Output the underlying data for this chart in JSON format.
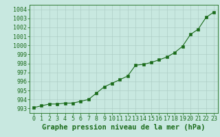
{
  "x": [
    0,
    1,
    2,
    3,
    4,
    5,
    6,
    7,
    8,
    9,
    10,
    11,
    12,
    13,
    14,
    15,
    16,
    17,
    18,
    19,
    20,
    21,
    22,
    23
  ],
  "y": [
    993.1,
    993.3,
    993.5,
    993.5,
    993.6,
    993.6,
    993.8,
    994.0,
    994.7,
    995.4,
    995.8,
    996.2,
    996.6,
    997.8,
    997.9,
    998.1,
    998.4,
    998.7,
    999.2,
    999.9,
    1001.2,
    1001.8,
    1003.1,
    1003.7
  ],
  "line_color": "#1a6b1a",
  "marker_color": "#1a6b1a",
  "bg_color": "#c8e8e0",
  "grid_color": "#a8c8c0",
  "xlabel": "Graphe pression niveau de la mer (hPa)",
  "ylim": [
    992.5,
    1004.5
  ],
  "yticks": [
    993,
    994,
    995,
    996,
    997,
    998,
    999,
    1000,
    1001,
    1002,
    1003,
    1004
  ],
  "xticks": [
    0,
    1,
    2,
    3,
    4,
    5,
    6,
    7,
    8,
    9,
    10,
    11,
    12,
    13,
    14,
    15,
    16,
    17,
    18,
    19,
    20,
    21,
    22,
    23
  ],
  "tick_label_color": "#1a6b1a",
  "xlabel_color": "#1a6b1a",
  "tick_fontsize": 6.0,
  "xlabel_fontsize": 7.5,
  "line_width": 0.8,
  "marker_size": 2.5
}
